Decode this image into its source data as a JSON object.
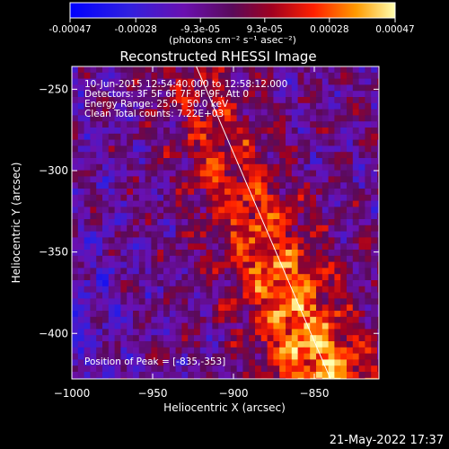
{
  "colorbar": {
    "tick_labels": [
      "-0.00047",
      "-0.00028",
      "-9.3e-05",
      "9.3e-05",
      "0.00028",
      "0.00047"
    ],
    "tick_values": [
      -0.00047,
      -0.00028,
      -9.3e-05,
      9.3e-05,
      0.00028,
      0.00047
    ],
    "range": [
      -0.00047,
      0.00047
    ],
    "units_label": "(photons cm⁻² s⁻¹ asec⁻²)"
  },
  "chart_data": {
    "type": "heatmap",
    "title": "Reconstructed RHESSI Image",
    "xlabel": "Heliocentric X (arcsec)",
    "ylabel": "Heliocentric Y (arcsec)",
    "xlim": [
      -1000,
      -810
    ],
    "ylim": [
      -428,
      -236
    ],
    "x_ticks": [
      -1000,
      -950,
      -900,
      -850
    ],
    "x_tick_labels": [
      "−1000",
      "−950",
      "−900",
      "−850"
    ],
    "y_ticks": [
      -250,
      -300,
      -350,
      -400
    ],
    "y_tick_labels": [
      "−250",
      "−300",
      "−350",
      "−400"
    ],
    "annotations": [
      "10-Jun-2015 12:54:40.000 to 12:58:12.000",
      "Detectors: 3F 5F 6F 7F 8F 9F, Att 0",
      "Energy Range: 25.0 - 50.0 keV",
      "Clean     Total counts: 7.22E+03"
    ],
    "peak_label": "Position of Peak = [-835,-353]",
    "limb_line": [
      [
        -923,
        -236
      ],
      [
        -840,
        -428
      ]
    ]
  },
  "footer": {
    "timestamp": "21-May-2022 17:37"
  },
  "colors": {
    "frame": "#ffffff",
    "limb": "#ffffff"
  }
}
